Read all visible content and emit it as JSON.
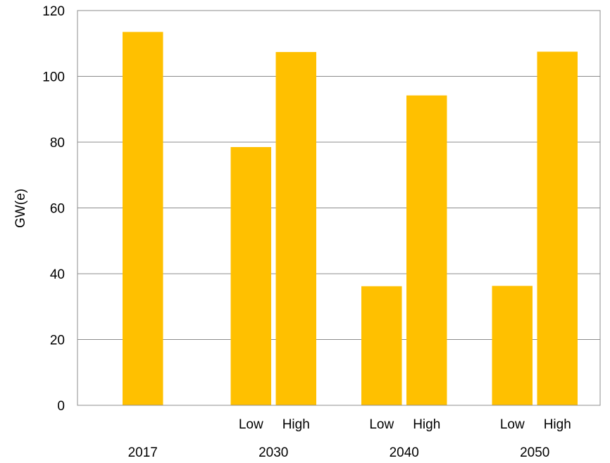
{
  "chart_data": {
    "type": "bar",
    "title": "",
    "xlabel": "",
    "ylabel": "GW(e)",
    "ylim": [
      0,
      120
    ],
    "y_ticks": [
      0,
      20,
      40,
      60,
      80,
      100,
      120
    ],
    "grid": "horizontal",
    "bar_color": "#FFC000",
    "groups": [
      {
        "label": "2017",
        "bars": [
          {
            "label": "",
            "value": 113.5
          }
        ]
      },
      {
        "label": "2030",
        "bars": [
          {
            "label": "Low",
            "value": 78.5
          },
          {
            "label": "High",
            "value": 107.4
          }
        ]
      },
      {
        "label": "2040",
        "bars": [
          {
            "label": "Low",
            "value": 36.2
          },
          {
            "label": "High",
            "value": 94.2
          }
        ]
      },
      {
        "label": "2050",
        "bars": [
          {
            "label": "Low",
            "value": 36.3
          },
          {
            "label": "High",
            "value": 107.5
          }
        ]
      }
    ]
  }
}
